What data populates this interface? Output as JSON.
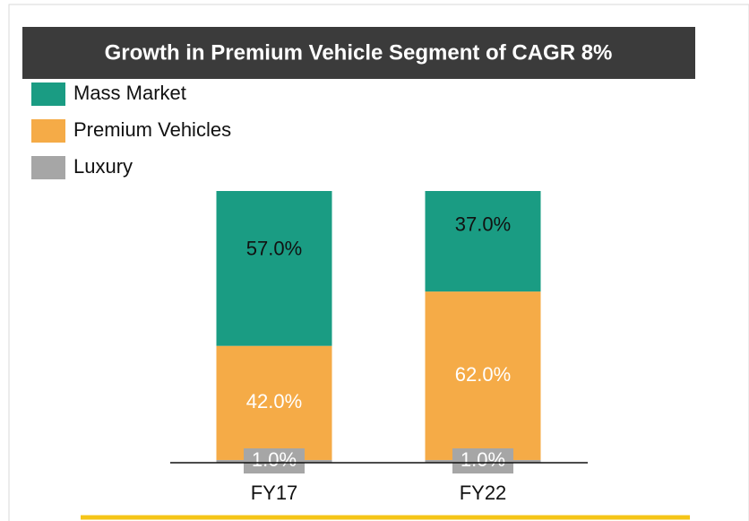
{
  "chart_data": {
    "type": "bar",
    "stacked": true,
    "title": "Growth in Premium Vehicle Segment of CAGR 8%",
    "categories": [
      "FY17",
      "FY22"
    ],
    "ylim": [
      0,
      100
    ],
    "series": [
      {
        "name": "Luxury",
        "color": "#a6a6a6",
        "values": [
          1,
          1
        ],
        "value_labels": [
          "1.0%",
          "1.0%"
        ]
      },
      {
        "name": "Premium Vehicles",
        "color": "#f5ab47",
        "values": [
          42,
          62
        ],
        "value_labels": [
          "42.0%",
          "62.0%"
        ]
      },
      {
        "name": "Mass Market",
        "color": "#1a9c83",
        "values": [
          57,
          37
        ],
        "value_labels": [
          "57.0%",
          "37.0%"
        ]
      }
    ]
  }
}
